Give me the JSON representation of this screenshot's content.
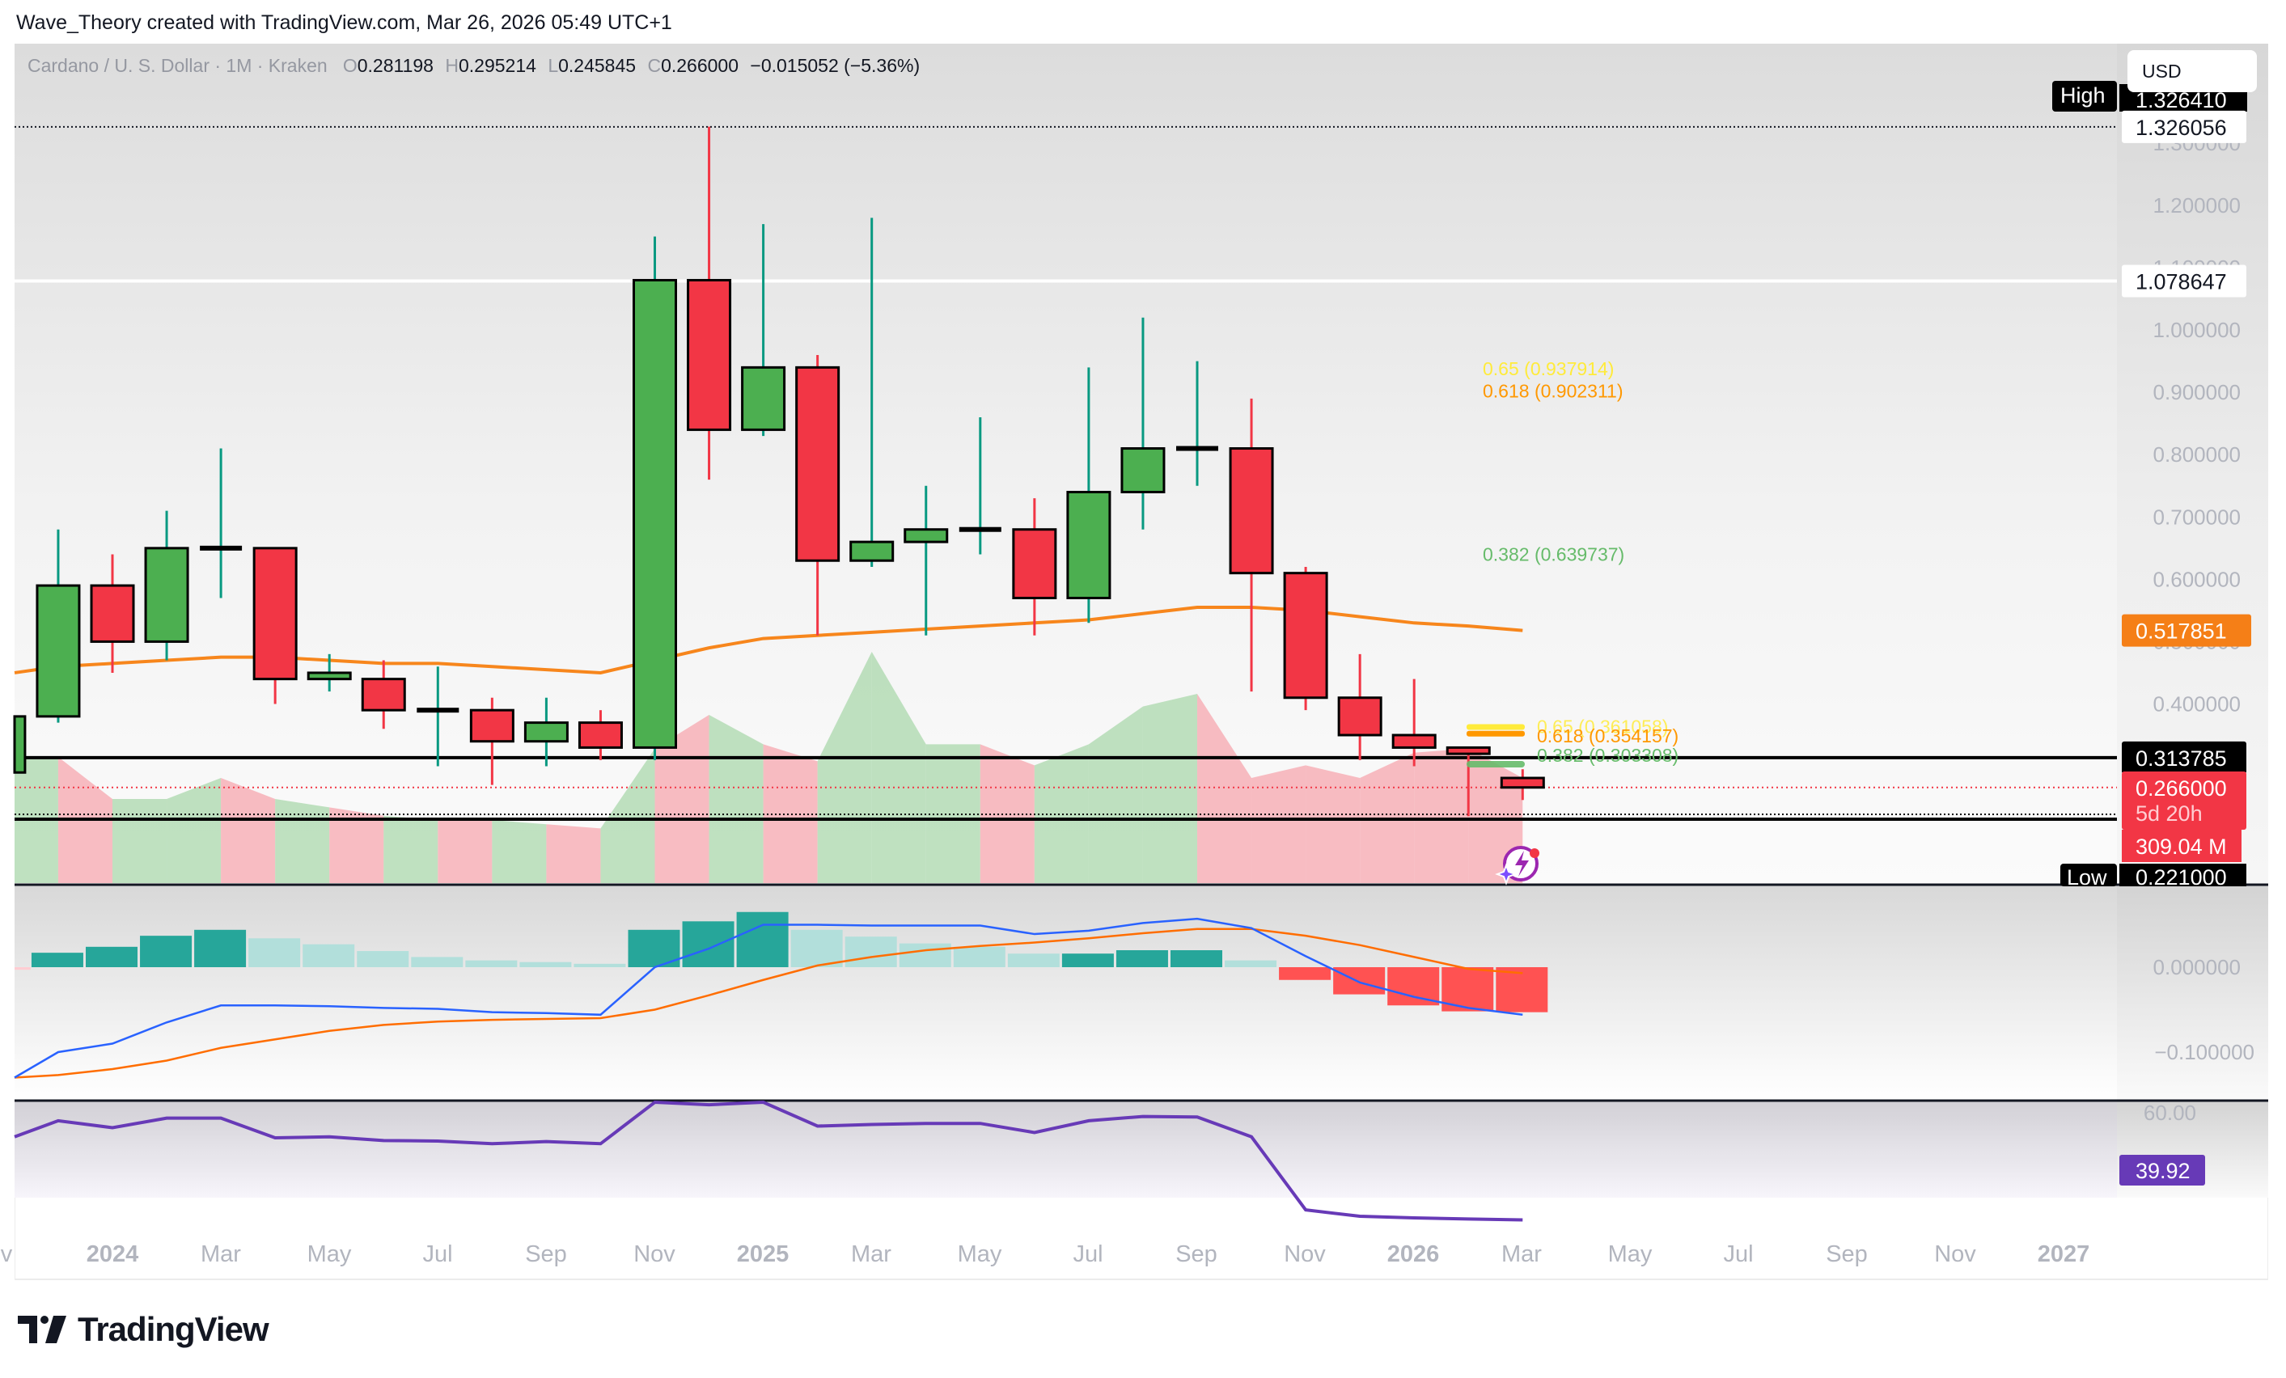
{
  "credit": "Wave_Theory created with TradingView.com, Mar 26, 2026 05:49 UTC+1",
  "legend": {
    "symbol": "Cardano / U. S. Dollar · 1M · Kraken",
    "o_label": "O",
    "o": "0.281198",
    "h_label": "H",
    "h": "0.295214",
    "l_label": "L",
    "l": "0.245845",
    "c_label": "C",
    "c": "0.266000",
    "change": "−0.015052 (−5.36%)"
  },
  "currency_button": "USD",
  "price_axis": {
    "ticks": [
      "1.300000",
      "1.200000",
      "1.100000",
      "1.000000",
      "0.900000",
      "0.800000",
      "0.700000",
      "0.600000",
      "0.500000",
      "0.400000"
    ],
    "tags": {
      "high_label": "High",
      "high_value": "1.326410",
      "dotted_high": "1.326056",
      "resistance": "1.078647",
      "ema": "0.517851",
      "support_upper": "0.313785",
      "last_price": "0.266000",
      "countdown": "5d 20h",
      "volume": "309.04 M",
      "low_label": "Low",
      "low_value": "0.221000"
    }
  },
  "fib_labels": {
    "upper_065": "0.65 (0.937914)",
    "upper_0618": "0.618 (0.902311)",
    "upper_0382": "0.382 (0.639737)",
    "lower_065": "0.65 (0.361058)",
    "lower_0618": "0.618 (0.354157)",
    "lower_0382": "0.382 (0.303308)"
  },
  "macd_axis": {
    "ticks": [
      "0.000000",
      "−0.100000"
    ]
  },
  "rsi_axis": {
    "ticks": [
      "60.00"
    ],
    "value": "39.92"
  },
  "time_axis": [
    "v",
    "2024",
    "Mar",
    "May",
    "Jul",
    "Sep",
    "Nov",
    "2025",
    "Mar",
    "May",
    "Jul",
    "Sep",
    "Nov",
    "2026",
    "Mar",
    "May",
    "Jul",
    "Sep",
    "Nov",
    "2027"
  ],
  "logo_text": "TradingView",
  "colors": {
    "up": "#4caf50",
    "down": "#f23645",
    "up_wick": "#089981",
    "ema": "#f7861c",
    "macd": "#2962ff",
    "signal": "#ff6d00",
    "hist_up_strong": "#26a69a",
    "hist_up_weak": "#b2dfdb",
    "hist_down": "#ff5252",
    "rsi": "#673ab7",
    "fib_065": "#ffeb3b",
    "fib_0618": "#ff9800",
    "fib_0382": "#66bb6a"
  },
  "chart_data": [
    {
      "type": "candlestick",
      "title": "Cardano / U. S. Dollar · 1M · Kraken",
      "x": [
        "2023-11",
        "2023-12",
        "2024-01",
        "2024-02",
        "2024-03",
        "2024-04",
        "2024-05",
        "2024-06",
        "2024-07",
        "2024-08",
        "2024-09",
        "2024-10",
        "2024-11",
        "2024-12",
        "2025-01",
        "2025-02",
        "2025-03",
        "2025-04",
        "2025-05",
        "2025-06",
        "2025-07",
        "2025-08",
        "2025-09",
        "2025-10",
        "2025-11",
        "2025-12",
        "2026-01",
        "2026-02",
        "2026-03"
      ],
      "open": [
        0.29,
        0.38,
        0.59,
        0.5,
        0.65,
        0.65,
        0.44,
        0.44,
        0.39,
        0.39,
        0.34,
        0.37,
        0.33,
        1.08,
        0.84,
        0.94,
        0.63,
        0.66,
        0.68,
        0.68,
        0.57,
        0.74,
        0.81,
        0.81,
        0.61,
        0.41,
        0.35,
        0.33,
        0.281198
      ],
      "high": [
        0.39,
        0.68,
        0.64,
        0.71,
        0.81,
        0.65,
        0.48,
        0.47,
        0.46,
        0.41,
        0.41,
        0.39,
        1.15,
        1.32641,
        1.17,
        0.96,
        1.18,
        0.75,
        0.86,
        0.73,
        0.94,
        1.02,
        0.95,
        0.89,
        0.62,
        0.48,
        0.44,
        0.33,
        0.295214
      ],
      "low": [
        0.29,
        0.37,
        0.45,
        0.47,
        0.57,
        0.4,
        0.42,
        0.36,
        0.3,
        0.27,
        0.3,
        0.31,
        0.31,
        0.76,
        0.83,
        0.51,
        0.62,
        0.51,
        0.64,
        0.51,
        0.53,
        0.68,
        0.75,
        0.42,
        0.39,
        0.31,
        0.3,
        0.22,
        0.245845
      ],
      "close": [
        0.38,
        0.59,
        0.5,
        0.65,
        0.65,
        0.44,
        0.45,
        0.39,
        0.39,
        0.34,
        0.37,
        0.33,
        1.08,
        0.84,
        0.94,
        0.63,
        0.66,
        0.68,
        0.68,
        0.57,
        0.74,
        0.81,
        0.81,
        0.61,
        0.41,
        0.35,
        0.33,
        0.32,
        0.266
      ],
      "ema_50": [
        0.45,
        0.46,
        0.465,
        0.47,
        0.475,
        0.475,
        0.47,
        0.465,
        0.465,
        0.46,
        0.455,
        0.45,
        0.47,
        0.49,
        0.505,
        0.51,
        0.515,
        0.52,
        0.525,
        0.53,
        0.535,
        0.545,
        0.555,
        0.555,
        0.55,
        0.54,
        0.53,
        0.525,
        0.517851
      ],
      "volume_area": [
        0.3,
        0.3,
        0.2,
        0.2,
        0.25,
        0.2,
        0.18,
        0.16,
        0.15,
        0.15,
        0.14,
        0.13,
        0.32,
        0.4,
        0.33,
        0.29,
        0.55,
        0.33,
        0.33,
        0.28,
        0.33,
        0.42,
        0.45,
        0.25,
        0.28,
        0.25,
        0.31,
        0.32,
        0.25
      ],
      "horizontal_lines": {
        "resistance": 1.078647,
        "ema": 0.517851,
        "support_upper": 0.313785,
        "support_lower": 0.221,
        "dotted_high": 1.326056,
        "last_price": 0.266
      },
      "fib_levels": {
        "upper": {
          "0.65": 0.937914,
          "0.618": 0.902311,
          "0.382": 0.639737
        },
        "lower": {
          "0.65": 0.361058,
          "0.618": 0.354157,
          "0.382": 0.303308
        }
      },
      "ylim": [
        0.21,
        1.37
      ]
    },
    {
      "type": "bar",
      "title": "MACD",
      "x": [
        "2023-11",
        "2023-12",
        "2024-01",
        "2024-02",
        "2024-03",
        "2024-04",
        "2024-05",
        "2024-06",
        "2024-07",
        "2024-08",
        "2024-09",
        "2024-10",
        "2024-11",
        "2024-12",
        "2025-01",
        "2025-02",
        "2025-03",
        "2025-04",
        "2025-05",
        "2025-06",
        "2025-07",
        "2025-08",
        "2025-09",
        "2025-10",
        "2025-11",
        "2025-12",
        "2026-01",
        "2026-02",
        "2026-03"
      ],
      "histogram": [
        -0.003,
        0.017,
        0.024,
        0.037,
        0.044,
        0.034,
        0.027,
        0.019,
        0.012,
        0.008,
        0.006,
        0.004,
        0.044,
        0.054,
        0.065,
        0.044,
        0.036,
        0.028,
        0.024,
        0.016,
        0.016,
        0.02,
        0.02,
        0.008,
        -0.015,
        -0.032,
        -0.045,
        -0.052,
        -0.053
      ],
      "macd_line": [
        -0.13,
        -0.1,
        -0.09,
        -0.065,
        -0.045,
        -0.045,
        -0.046,
        -0.048,
        -0.049,
        -0.053,
        -0.054,
        -0.056,
        0.0,
        0.022,
        0.05,
        0.05,
        0.049,
        0.049,
        0.049,
        0.039,
        0.043,
        0.052,
        0.057,
        0.046,
        0.013,
        -0.018,
        -0.035,
        -0.048,
        -0.056
      ],
      "signal_line": [
        -0.13,
        -0.127,
        -0.12,
        -0.11,
        -0.095,
        -0.085,
        -0.075,
        -0.068,
        -0.064,
        -0.062,
        -0.061,
        -0.06,
        -0.05,
        -0.033,
        -0.015,
        0.002,
        0.012,
        0.02,
        0.025,
        0.029,
        0.034,
        0.04,
        0.045,
        0.045,
        0.037,
        0.026,
        0.012,
        -0.002,
        -0.007
      ],
      "ylim": [
        -0.14,
        0.075
      ]
    },
    {
      "type": "line",
      "title": "RSI",
      "x": [
        "2023-11",
        "2023-12",
        "2024-01",
        "2024-02",
        "2024-03",
        "2024-04",
        "2024-05",
        "2024-06",
        "2024-07",
        "2024-08",
        "2024-09",
        "2024-10",
        "2024-11",
        "2024-12",
        "2025-01",
        "2025-02",
        "2025-03",
        "2025-04",
        "2025-05",
        "2025-06",
        "2025-07",
        "2025-08",
        "2025-09",
        "2025-10",
        "2025-11",
        "2025-12",
        "2026-01",
        "2026-02",
        "2026-03"
      ],
      "values": [
        55.5,
        58.5,
        57.2,
        59,
        59,
        55.3,
        55.5,
        54.8,
        54.7,
        54.2,
        54.6,
        54.2,
        63.5,
        61.5,
        62.5,
        57.5,
        57.8,
        58,
        58,
        56.3,
        58.5,
        59.3,
        59.2,
        55.5,
        41.8,
        40.6,
        40.3,
        40.1,
        39.92
      ],
      "ylim": [
        35,
        64
      ]
    }
  ]
}
